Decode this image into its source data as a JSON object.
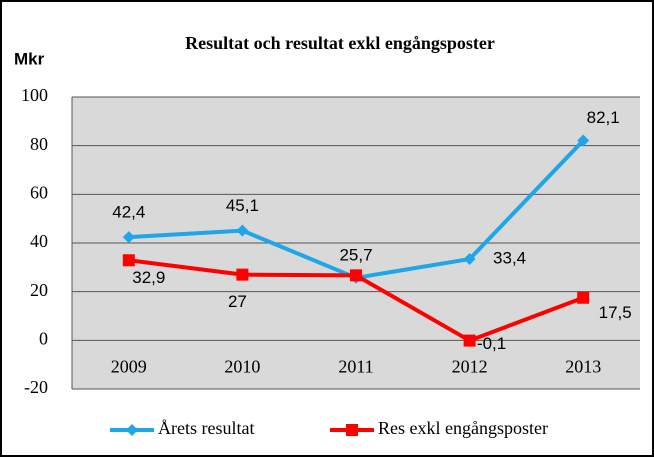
{
  "chart_data": {
    "type": "line",
    "title": "Resultat och resultat exkl engångsposter",
    "y_label": "Mkr",
    "categories": [
      "2009",
      "2010",
      "2011",
      "2012",
      "2013"
    ],
    "series": [
      {
        "name": "Årets resultat",
        "color": "#1ea6e8",
        "marker": "diamond",
        "values": [
          42.4,
          45.1,
          25.7,
          33.4,
          82.1
        ],
        "value_labels": [
          "42,4",
          "45,1",
          "25,7",
          "33,4",
          "82,1"
        ]
      },
      {
        "name": "Res exkl engångsposter",
        "color": "#ff0000",
        "marker": "square",
        "values": [
          32.9,
          27,
          26.7,
          -0.1,
          17.5
        ],
        "value_labels": [
          "32,9",
          "27",
          null,
          "-0,1",
          "17,5"
        ]
      }
    ],
    "ylim": [
      -20,
      100
    ],
    "yticks": [
      -20,
      0,
      20,
      40,
      60,
      80,
      100
    ],
    "grid": true,
    "legend": "bottom"
  }
}
